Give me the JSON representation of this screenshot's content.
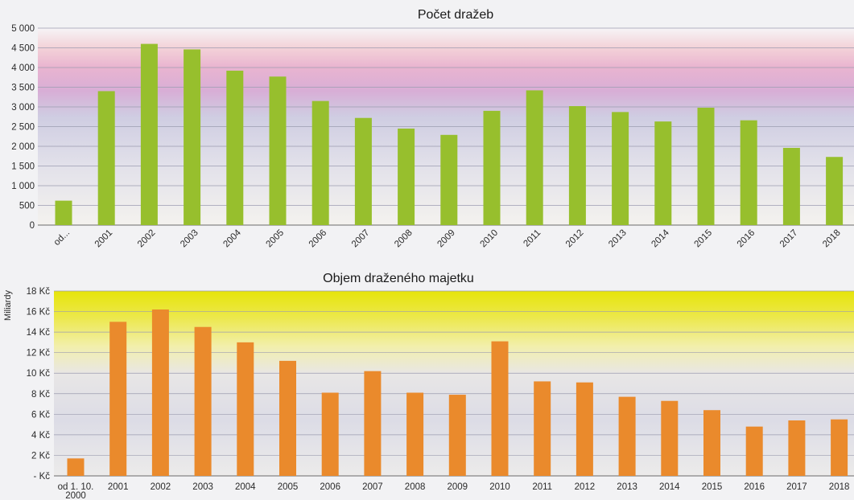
{
  "chart_data": [
    {
      "type": "bar",
      "title": "Počet dražeb",
      "xlabel": "",
      "ylabel": "",
      "categories": [
        "od...",
        "2001",
        "2002",
        "2003",
        "2004",
        "2005",
        "2006",
        "2007",
        "2008",
        "2009",
        "2010",
        "2011",
        "2012",
        "2013",
        "2014",
        "2015",
        "2016",
        "2017",
        "2018"
      ],
      "values": [
        620,
        3400,
        4600,
        4460,
        3920,
        3770,
        3150,
        2720,
        2450,
        2290,
        2900,
        3420,
        3020,
        2870,
        2630,
        2980,
        2660,
        1960,
        1730
      ],
      "ylim": [
        0,
        5000
      ],
      "ytick_labels": [
        "0",
        "500",
        "1 000",
        "1 500",
        "2 000",
        "2 500",
        "3 000",
        "3 500",
        "4 000",
        "4 500",
        "5 000"
      ],
      "bar_color": "#97bf2d",
      "grid": true,
      "legend": "none"
    },
    {
      "type": "bar",
      "title": "Objem draženého majetku",
      "xlabel": "",
      "ylabel": "Miliardy",
      "categories": [
        "od 1. 10. 2000",
        "2001",
        "2002",
        "2003",
        "2004",
        "2005",
        "2006",
        "2007",
        "2008",
        "2009",
        "2010",
        "2011",
        "2012",
        "2013",
        "2014",
        "2015",
        "2016",
        "2017",
        "2018"
      ],
      "values": [
        1.7,
        15.0,
        16.2,
        14.5,
        13.0,
        11.2,
        8.1,
        10.2,
        8.1,
        7.9,
        13.1,
        9.2,
        9.1,
        7.7,
        7.3,
        6.4,
        4.8,
        5.4,
        5.5
      ],
      "ylim": [
        0,
        18
      ],
      "ytick_labels": [
        "- Kč",
        "2 Kč",
        "4 Kč",
        "6 Kč",
        "8 Kč",
        "10 Kč",
        "12 Kč",
        "14 Kč",
        "16 Kč",
        "18 Kč"
      ],
      "bar_color": "#ea8a2c",
      "grid": true,
      "legend": "none"
    }
  ]
}
